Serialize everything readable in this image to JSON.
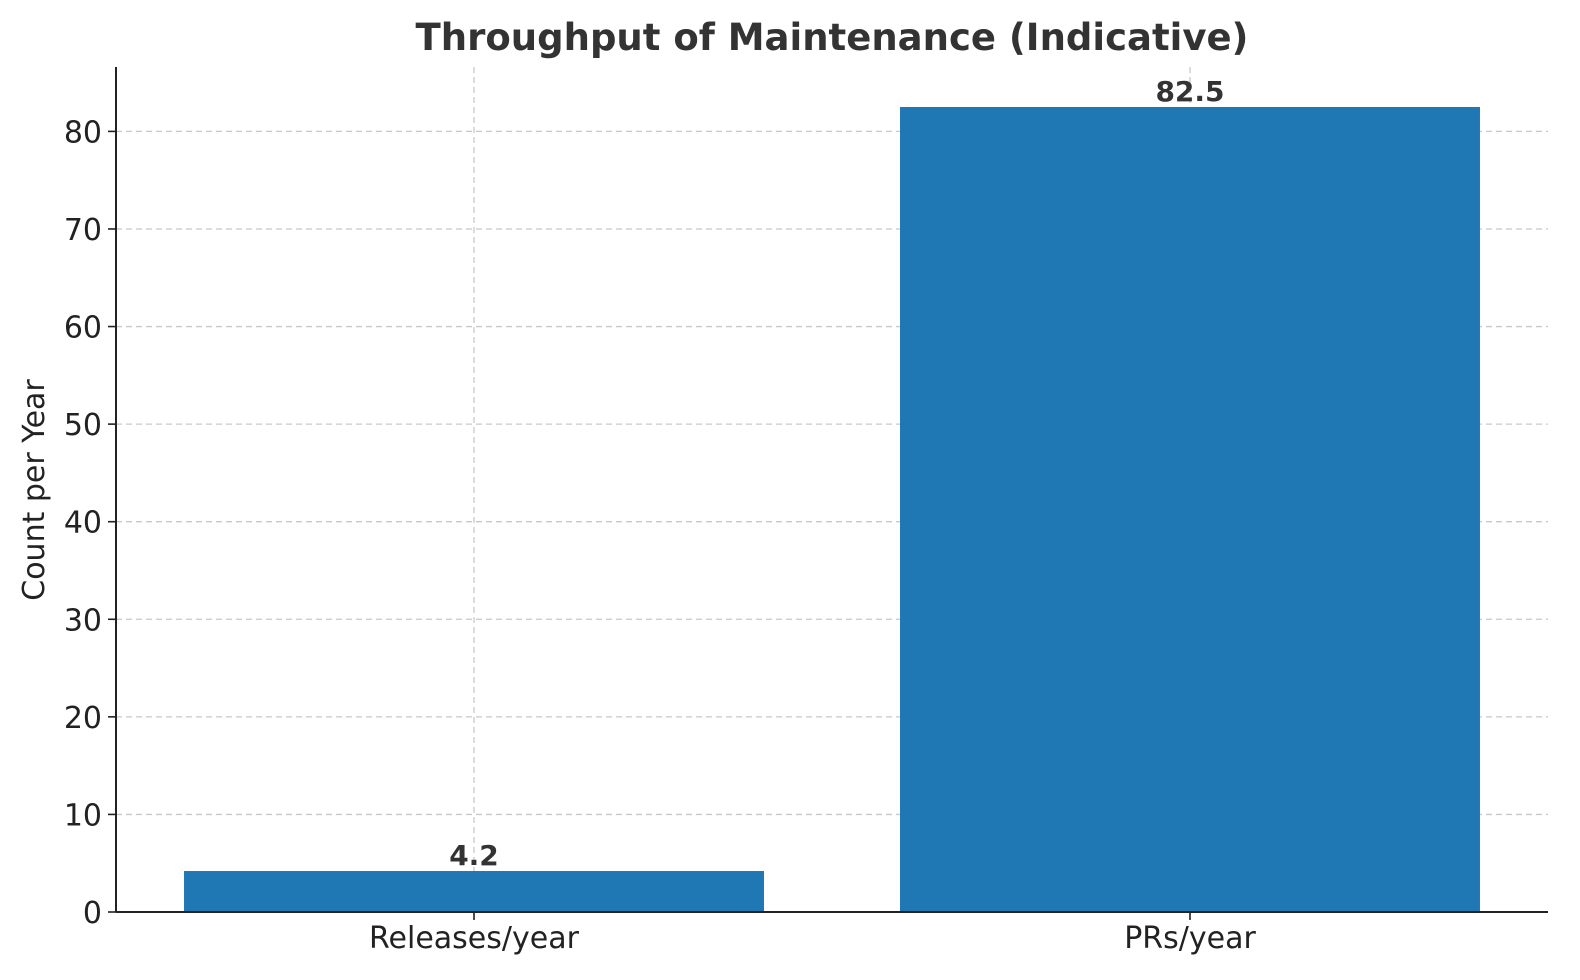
{
  "chart_data": {
    "type": "bar",
    "title": "Throughput of Maintenance (Indicative)",
    "xlabel": "",
    "ylabel": "Count per Year",
    "categories": [
      "Releases/year",
      "PRs/year"
    ],
    "values": [
      4.2,
      82.5
    ],
    "data_labels": [
      "4.2",
      "82.5"
    ],
    "ylim": [
      0,
      86.6
    ],
    "yticks": [
      0,
      10,
      20,
      30,
      40,
      50,
      60,
      70,
      80
    ],
    "grid": true,
    "bar_color": "#1f77b4"
  }
}
